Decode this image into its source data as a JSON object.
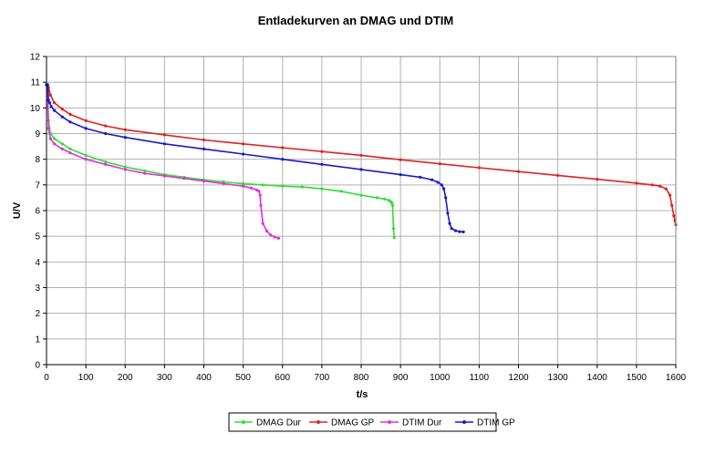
{
  "chart_data": {
    "type": "line",
    "title": "Entladekurven an DMAG und DTIM",
    "xlabel": "t/s",
    "ylabel": "U/V",
    "xlim": [
      0,
      1600
    ],
    "ylim": [
      0,
      12
    ],
    "xticks": [
      0,
      100,
      200,
      300,
      400,
      500,
      600,
      700,
      800,
      900,
      1000,
      1100,
      1200,
      1300,
      1400,
      1500,
      1600
    ],
    "yticks": [
      0,
      1,
      2,
      3,
      4,
      5,
      6,
      7,
      8,
      9,
      10,
      11,
      12
    ],
    "grid": true,
    "legend_position": "bottom",
    "series": [
      {
        "name": "DMAG Dur",
        "color": "#33dd33",
        "x": [
          0,
          2,
          5,
          10,
          20,
          40,
          60,
          100,
          150,
          200,
          250,
          300,
          350,
          400,
          450,
          500,
          550,
          600,
          650,
          700,
          750,
          800,
          840,
          860,
          870,
          875,
          878,
          880,
          882,
          884
        ],
        "y": [
          10.9,
          10.9,
          9.5,
          9.0,
          8.8,
          8.6,
          8.4,
          8.15,
          7.9,
          7.7,
          7.55,
          7.4,
          7.3,
          7.2,
          7.12,
          7.05,
          7.0,
          6.95,
          6.92,
          6.85,
          6.75,
          6.6,
          6.5,
          6.45,
          6.4,
          6.35,
          6.3,
          6.2,
          5.3,
          4.95
        ]
      },
      {
        "name": "DMAG GP",
        "color": "#dd2222",
        "x": [
          0,
          5,
          10,
          20,
          40,
          60,
          100,
          150,
          200,
          300,
          400,
          500,
          600,
          700,
          800,
          900,
          1000,
          1100,
          1200,
          1300,
          1400,
          1500,
          1540,
          1560,
          1575,
          1585,
          1590,
          1595,
          1598,
          1600
        ],
        "y": [
          10.9,
          10.8,
          10.5,
          10.2,
          9.95,
          9.75,
          9.5,
          9.3,
          9.15,
          8.95,
          8.75,
          8.6,
          8.45,
          8.3,
          8.15,
          7.98,
          7.82,
          7.67,
          7.52,
          7.37,
          7.22,
          7.07,
          7.0,
          6.95,
          6.85,
          6.6,
          6.2,
          5.8,
          5.6,
          5.45
        ]
      },
      {
        "name": "DTIM Dur",
        "color": "#dd33dd",
        "x": [
          0,
          2,
          5,
          10,
          20,
          40,
          60,
          100,
          150,
          200,
          250,
          300,
          350,
          400,
          450,
          500,
          520,
          535,
          540,
          543,
          545,
          550,
          560,
          570,
          580,
          590
        ],
        "y": [
          10.9,
          10.9,
          9.2,
          8.8,
          8.6,
          8.4,
          8.25,
          8.0,
          7.8,
          7.6,
          7.45,
          7.35,
          7.25,
          7.15,
          7.05,
          6.95,
          6.88,
          6.8,
          6.75,
          6.6,
          6.2,
          5.5,
          5.2,
          5.05,
          4.97,
          4.92
        ]
      },
      {
        "name": "DTIM GP",
        "color": "#1a1acc",
        "x": [
          0,
          3,
          5,
          8,
          12,
          20,
          40,
          60,
          100,
          150,
          200,
          300,
          400,
          500,
          600,
          700,
          800,
          900,
          950,
          980,
          995,
          1005,
          1010,
          1015,
          1020,
          1025,
          1030,
          1040,
          1050,
          1060
        ],
        "y": [
          10.9,
          10.9,
          10.3,
          10.2,
          10.05,
          9.9,
          9.65,
          9.45,
          9.2,
          9.0,
          8.85,
          8.6,
          8.4,
          8.2,
          8.0,
          7.8,
          7.6,
          7.4,
          7.3,
          7.2,
          7.1,
          7.0,
          6.85,
          6.5,
          5.9,
          5.5,
          5.3,
          5.22,
          5.18,
          5.17
        ]
      }
    ]
  }
}
